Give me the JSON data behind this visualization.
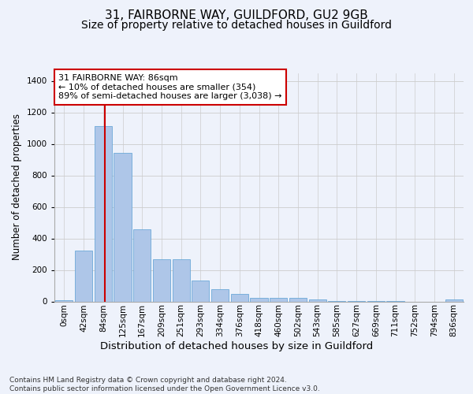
{
  "title1": "31, FAIRBORNE WAY, GUILDFORD, GU2 9GB",
  "title2": "Size of property relative to detached houses in Guildford",
  "xlabel": "Distribution of detached houses by size in Guildford",
  "ylabel": "Number of detached properties",
  "footnote": "Contains HM Land Registry data © Crown copyright and database right 2024.\nContains public sector information licensed under the Open Government Licence v3.0.",
  "bar_labels": [
    "0sqm",
    "42sqm",
    "84sqm",
    "125sqm",
    "167sqm",
    "209sqm",
    "251sqm",
    "293sqm",
    "334sqm",
    "376sqm",
    "418sqm",
    "460sqm",
    "502sqm",
    "543sqm",
    "585sqm",
    "627sqm",
    "669sqm",
    "711sqm",
    "752sqm",
    "794sqm",
    "836sqm"
  ],
  "bar_values": [
    10,
    325,
    1115,
    945,
    460,
    270,
    270,
    135,
    78,
    50,
    25,
    25,
    25,
    15,
    5,
    5,
    5,
    5,
    0,
    0,
    15
  ],
  "bar_color": "#aec6e8",
  "bar_edge_color": "#5a9fd4",
  "annotation_text": "31 FAIRBORNE WAY: 86sqm\n← 10% of detached houses are smaller (354)\n89% of semi-detached houses are larger (3,038) →",
  "annotation_box_color": "#ffffff",
  "annotation_box_edge_color": "#cc0000",
  "vline_color": "#cc0000",
  "ylim": [
    0,
    1450
  ],
  "yticks": [
    0,
    200,
    400,
    600,
    800,
    1000,
    1200,
    1400
  ],
  "bg_color": "#eef2fb",
  "plot_bg_color": "#eef2fb",
  "grid_color": "#cccccc",
  "title1_fontsize": 11,
  "title2_fontsize": 10,
  "xlabel_fontsize": 9.5,
  "ylabel_fontsize": 8.5,
  "tick_fontsize": 7.5,
  "annot_fontsize": 8,
  "footnote_fontsize": 6.5
}
